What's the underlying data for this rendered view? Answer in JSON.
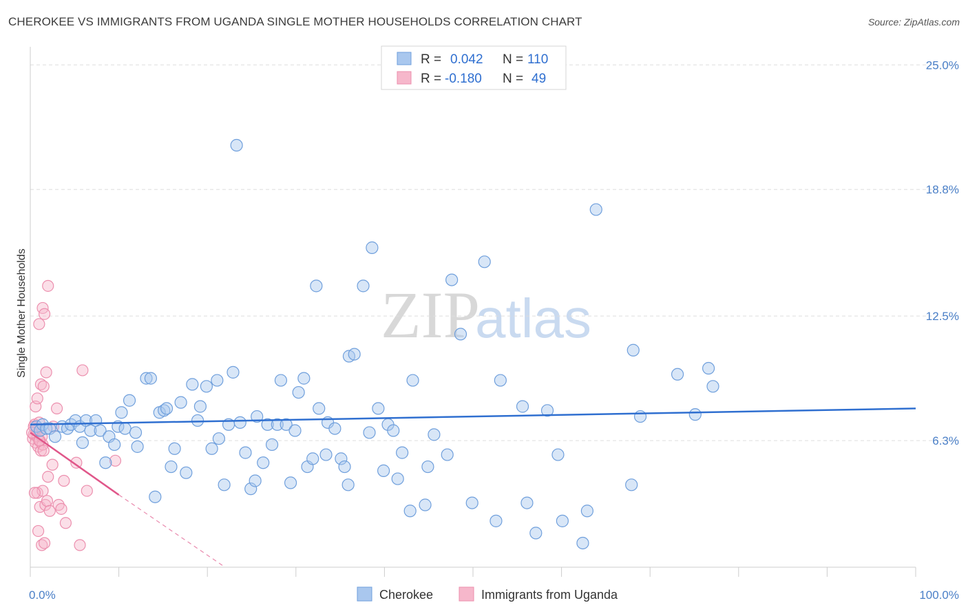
{
  "title": "CHEROKEE VS IMMIGRANTS FROM UGANDA SINGLE MOTHER HOUSEHOLDS CORRELATION CHART",
  "source": "Source: ZipAtlas.com",
  "watermark": {
    "zip": "ZIP",
    "atlas": "atlas"
  },
  "legend_box": {
    "rows": [
      {
        "r_label": "R =",
        "r_value": "0.042",
        "n_label": "N =",
        "n_value": "110"
      },
      {
        "r_label": "R =",
        "r_value": "-0.180",
        "n_label": "N =",
        "n_value": "49"
      }
    ]
  },
  "bottom_legend": [
    "Cherokee",
    "Immigrants from Uganda"
  ],
  "colors": {
    "cherokee_fill": "#a9c7ee",
    "cherokee_stroke": "#6f9fdc",
    "cherokee_line": "#2f6fd0",
    "uganda_fill": "#f6b7cb",
    "uganda_stroke": "#ec8fae",
    "uganda_line": "#e0578a",
    "grid": "#dddddd"
  },
  "chart_data": {
    "type": "scatter",
    "title": "CHEROKEE VS IMMIGRANTS FROM UGANDA SINGLE MOTHER HOUSEHOLDS CORRELATION CHART",
    "xlabel": "",
    "ylabel": "Single Mother Households",
    "xlim": [
      0,
      100
    ],
    "ylim": [
      0,
      25.9
    ],
    "x_tick_labels": [
      "0.0%",
      "100.0%"
    ],
    "y_ticks": [
      6.3,
      12.5,
      18.8,
      25.0
    ],
    "y_tick_labels": [
      "6.3%",
      "12.5%",
      "18.8%",
      "25.0%"
    ],
    "series": [
      {
        "name": "Cherokee",
        "R": 0.042,
        "N": 110,
        "trend": {
          "x": [
            0,
            100
          ],
          "y": [
            7.1,
            7.9
          ]
        },
        "points": [
          [
            0.7,
            7.0
          ],
          [
            1.1,
            6.8
          ],
          [
            1.4,
            7.1
          ],
          [
            1.8,
            6.9
          ],
          [
            2.2,
            6.9
          ],
          [
            2.8,
            6.5
          ],
          [
            3.6,
            7.0
          ],
          [
            4.2,
            6.9
          ],
          [
            4.6,
            7.1
          ],
          [
            5.1,
            7.3
          ],
          [
            5.6,
            7.0
          ],
          [
            5.9,
            6.2
          ],
          [
            6.3,
            7.3
          ],
          [
            6.8,
            6.8
          ],
          [
            7.4,
            7.3
          ],
          [
            7.9,
            6.8
          ],
          [
            8.5,
            5.2
          ],
          [
            8.9,
            6.5
          ],
          [
            9.5,
            6.1
          ],
          [
            9.9,
            7.0
          ],
          [
            10.3,
            7.7
          ],
          [
            10.7,
            6.9
          ],
          [
            11.2,
            8.3
          ],
          [
            12.1,
            6.0
          ],
          [
            11.9,
            6.7
          ],
          [
            13.1,
            9.4
          ],
          [
            13.6,
            9.4
          ],
          [
            14.1,
            3.5
          ],
          [
            14.6,
            7.7
          ],
          [
            15.1,
            7.8
          ],
          [
            15.4,
            7.9
          ],
          [
            15.9,
            5.0
          ],
          [
            16.3,
            5.9
          ],
          [
            17.0,
            8.2
          ],
          [
            17.6,
            4.7
          ],
          [
            18.3,
            9.1
          ],
          [
            18.9,
            7.3
          ],
          [
            19.2,
            8.0
          ],
          [
            19.9,
            9.0
          ],
          [
            20.5,
            5.9
          ],
          [
            21.1,
            9.3
          ],
          [
            21.3,
            6.4
          ],
          [
            21.9,
            4.1
          ],
          [
            22.4,
            7.1
          ],
          [
            22.9,
            9.7
          ],
          [
            23.3,
            21.0
          ],
          [
            23.7,
            7.2
          ],
          [
            24.3,
            5.7
          ],
          [
            24.9,
            3.9
          ],
          [
            25.4,
            4.3
          ],
          [
            25.6,
            7.5
          ],
          [
            26.3,
            5.2
          ],
          [
            26.8,
            7.1
          ],
          [
            27.3,
            6.1
          ],
          [
            27.9,
            7.1
          ],
          [
            28.3,
            9.3
          ],
          [
            28.9,
            7.1
          ],
          [
            29.4,
            4.2
          ],
          [
            29.9,
            6.8
          ],
          [
            30.3,
            8.7
          ],
          [
            30.9,
            9.4
          ],
          [
            31.3,
            5.0
          ],
          [
            31.9,
            5.4
          ],
          [
            32.3,
            14.0
          ],
          [
            32.6,
            7.9
          ],
          [
            33.4,
            5.6
          ],
          [
            33.6,
            7.2
          ],
          [
            34.4,
            6.9
          ],
          [
            35.1,
            5.4
          ],
          [
            35.5,
            5.0
          ],
          [
            35.9,
            4.1
          ],
          [
            36.0,
            10.5
          ],
          [
            36.6,
            10.6
          ],
          [
            37.6,
            14.0
          ],
          [
            38.3,
            6.7
          ],
          [
            38.6,
            15.9
          ],
          [
            39.3,
            7.9
          ],
          [
            39.9,
            4.8
          ],
          [
            40.4,
            7.1
          ],
          [
            41.0,
            6.8
          ],
          [
            41.5,
            4.4
          ],
          [
            42.0,
            5.7
          ],
          [
            42.9,
            2.8
          ],
          [
            43.2,
            9.3
          ],
          [
            44.6,
            3.1
          ],
          [
            44.9,
            5.0
          ],
          [
            45.6,
            6.6
          ],
          [
            47.1,
            5.6
          ],
          [
            47.6,
            14.3
          ],
          [
            48.6,
            11.6
          ],
          [
            49.9,
            3.2
          ],
          [
            51.3,
            15.2
          ],
          [
            52.6,
            2.3
          ],
          [
            53.1,
            9.3
          ],
          [
            55.6,
            8.0
          ],
          [
            56.1,
            3.2
          ],
          [
            57.1,
            1.7
          ],
          [
            58.4,
            7.8
          ],
          [
            59.6,
            5.6
          ],
          [
            60.1,
            2.3
          ],
          [
            62.4,
            1.2
          ],
          [
            62.9,
            2.8
          ],
          [
            63.9,
            17.8
          ],
          [
            67.9,
            4.1
          ],
          [
            68.1,
            10.8
          ],
          [
            68.9,
            7.5
          ],
          [
            73.1,
            9.6
          ],
          [
            75.1,
            7.6
          ],
          [
            76.6,
            9.9
          ],
          [
            77.1,
            9.0
          ]
        ]
      },
      {
        "name": "Immigrants from Uganda",
        "R": -0.18,
        "N": 49,
        "trend": {
          "x": [
            0,
            10
          ],
          "y": [
            6.7,
            3.6
          ]
        },
        "trend_dashed": {
          "x": [
            10,
            22
          ],
          "y": [
            3.6,
            0
          ]
        },
        "points": [
          [
            0.3,
            6.4
          ],
          [
            0.4,
            6.6
          ],
          [
            0.5,
            7.1
          ],
          [
            0.6,
            6.2
          ],
          [
            0.7,
            6.8
          ],
          [
            0.8,
            6.5
          ],
          [
            0.9,
            6.0
          ],
          [
            1.0,
            7.2
          ],
          [
            1.1,
            6.3
          ],
          [
            1.2,
            5.8
          ],
          [
            1.3,
            6.5
          ],
          [
            1.4,
            6.1
          ],
          [
            0.6,
            8.0
          ],
          [
            0.8,
            8.4
          ],
          [
            1.0,
            12.1
          ],
          [
            1.4,
            12.9
          ],
          [
            1.6,
            12.6
          ],
          [
            1.8,
            9.7
          ],
          [
            2.0,
            14.0
          ],
          [
            1.2,
            9.1
          ],
          [
            1.5,
            9.0
          ],
          [
            0.8,
            3.7
          ],
          [
            1.1,
            3.0
          ],
          [
            1.4,
            3.8
          ],
          [
            1.7,
            3.1
          ],
          [
            2.0,
            4.5
          ],
          [
            1.9,
            3.3
          ],
          [
            2.2,
            2.8
          ],
          [
            2.5,
            5.1
          ],
          [
            3.0,
            7.9
          ],
          [
            3.2,
            3.1
          ],
          [
            3.5,
            2.9
          ],
          [
            3.8,
            4.3
          ],
          [
            4.0,
            2.2
          ],
          [
            0.5,
            3.7
          ],
          [
            0.9,
            1.8
          ],
          [
            1.3,
            1.1
          ],
          [
            1.6,
            1.2
          ],
          [
            5.2,
            5.2
          ],
          [
            5.6,
            1.1
          ],
          [
            5.9,
            9.8
          ],
          [
            6.4,
            3.8
          ],
          [
            9.6,
            5.3
          ],
          [
            0.4,
            7.0
          ],
          [
            0.7,
            6.9
          ],
          [
            1.0,
            6.3
          ],
          [
            1.5,
            5.8
          ],
          [
            2.6,
            7.0
          ],
          [
            0.2,
            6.7
          ]
        ]
      }
    ]
  }
}
